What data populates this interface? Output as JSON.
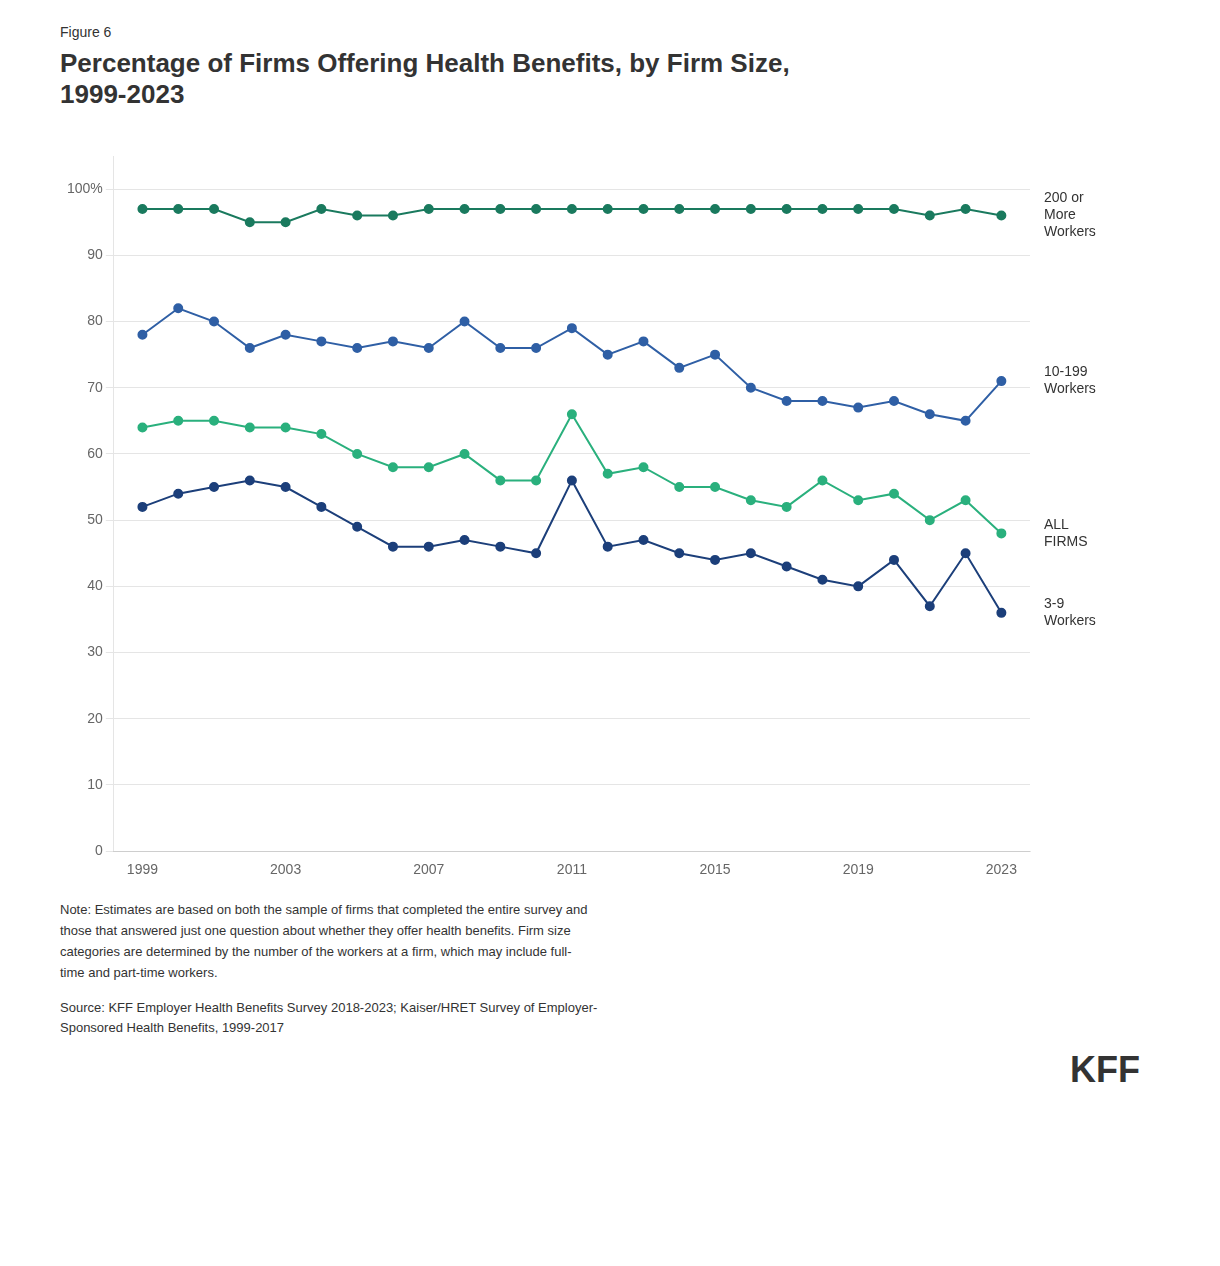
{
  "chart_data": {
    "type": "line",
    "figure_label": "Figure 6",
    "title": "Percentage of Firms Offering Health Benefits, by Firm Size,\n1999-2023",
    "x": [
      1999,
      2000,
      2001,
      2002,
      2003,
      2004,
      2005,
      2006,
      2007,
      2008,
      2009,
      2010,
      2011,
      2012,
      2013,
      2014,
      2015,
      2016,
      2017,
      2018,
      2019,
      2020,
      2021,
      2022,
      2023
    ],
    "series": [
      {
        "name": "200 or\nMore\nWorkers",
        "color": "#1a7a5e",
        "values": [
          97,
          97,
          97,
          95,
          95,
          97,
          96,
          96,
          97,
          97,
          97,
          97,
          97,
          97,
          97,
          97,
          97,
          97,
          97,
          97,
          97,
          97,
          96,
          97,
          96
        ]
      },
      {
        "name": "10-199\nWorkers",
        "color": "#2f5fa5",
        "values": [
          78,
          82,
          80,
          76,
          78,
          77,
          76,
          77,
          76,
          80,
          76,
          76,
          79,
          75,
          77,
          73,
          75,
          70,
          68,
          68,
          67,
          68,
          66,
          65,
          71
        ]
      },
      {
        "name": "ALL\nFIRMS",
        "color": "#2ab07d",
        "values": [
          64,
          65,
          65,
          64,
          64,
          63,
          60,
          58,
          58,
          60,
          56,
          56,
          66,
          57,
          58,
          55,
          55,
          53,
          52,
          56,
          53,
          54,
          50,
          53,
          48
        ]
      },
      {
        "name": "3-9\nWorkers",
        "color": "#1c3f7a",
        "values": [
          52,
          54,
          55,
          56,
          55,
          52,
          49,
          46,
          46,
          47,
          46,
          45,
          56,
          46,
          47,
          45,
          44,
          45,
          43,
          41,
          40,
          44,
          37,
          45,
          36
        ]
      }
    ],
    "xlim": [
      1998.2,
      2023.8
    ],
    "xticks": [
      1999,
      2003,
      2007,
      2011,
      2015,
      2019,
      2023
    ],
    "ylim": [
      0,
      105
    ],
    "yticks": [
      0,
      10,
      20,
      30,
      40,
      50,
      60,
      70,
      80,
      90,
      {
        "value": 100,
        "label": "100%"
      }
    ],
    "grid": true,
    "marker": "circle",
    "note": "Note: Estimates are based on both the sample of firms that completed the entire survey and\nthose that answered just one question about whether they offer health benefits. Firm size\ncategories are determined by the number of the workers at a firm, which may include full-\ntime and part-time workers.",
    "source": "Source: KFF Employer Health Benefits Survey 2018-2023; Kaiser/HRET Survey of Employer-\nSponsored Health Benefits, 1999-2017",
    "logo": "KFF"
  }
}
